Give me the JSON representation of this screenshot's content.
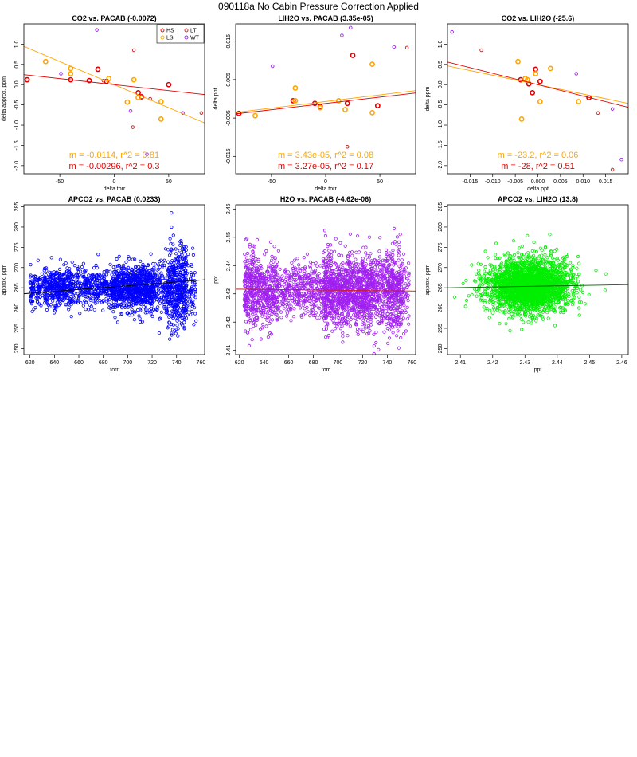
{
  "page": {
    "title": "090118a   No Cabin Pressure Correction Applied"
  },
  "colors": {
    "HS": "#e00000",
    "LS": "#ffa500",
    "LT": "#c81e1e",
    "WT": "#a020f0",
    "blue": "#0000ff",
    "purple": "#a020f0",
    "green": "#00ee00"
  },
  "chart_data": [
    {
      "type": "scatter",
      "title": "CO2 vs. PACAB (-0.0072)",
      "xlabel": "delta torr",
      "ylabel": "delta approx. ppm",
      "xlim": [
        -83,
        83
      ],
      "ylim": [
        -2.2,
        1.5
      ],
      "xticks": [
        -50,
        0,
        50
      ],
      "xtick_labels": [
        "-50",
        "0",
        "50"
      ],
      "yticks": [
        -2,
        -1.5,
        -1,
        -0.5,
        0,
        0.5,
        1
      ],
      "ytick_labels": [
        "-2.0",
        "-1.5",
        "-1.0",
        "-0.5",
        "0.0",
        "0.5",
        "1.0"
      ],
      "legend": {
        "placement": "top-right",
        "entries": [
          {
            "label": "HS",
            "color": "#e00000"
          },
          {
            "label": "LT",
            "color": "#c81e1e"
          },
          {
            "label": "LS",
            "color": "#ffa500"
          },
          {
            "label": "WT",
            "color": "#a020f0"
          }
        ]
      },
      "series": [
        {
          "name": "HS",
          "color": "#e00000",
          "thick": true,
          "points": [
            [
              -80,
              0.12
            ],
            [
              -40,
              0.12
            ],
            [
              -23,
              0.1
            ],
            [
              -15,
              0.38
            ],
            [
              -7,
              0.08
            ],
            [
              22,
              -0.2
            ],
            [
              25,
              -0.3
            ],
            [
              50,
              0.0
            ]
          ]
        },
        {
          "name": "LS",
          "color": "#ffa500",
          "thick": true,
          "points": [
            [
              -63,
              0.57
            ],
            [
              -40,
              0.4
            ],
            [
              -40,
              0.27
            ],
            [
              -5,
              0.15
            ],
            [
              12,
              -0.43
            ],
            [
              18,
              0.12
            ],
            [
              22,
              -0.32
            ],
            [
              43,
              -0.42
            ],
            [
              43,
              -0.85
            ]
          ]
        },
        {
          "name": "LT",
          "color": "#c81e1e",
          "thick": false,
          "points": [
            [
              -10,
              0.1
            ],
            [
              18,
              0.85
            ],
            [
              17,
              -1.05
            ],
            [
              33,
              -0.35
            ],
            [
              80,
              -0.7
            ]
          ]
        },
        {
          "name": "WT",
          "color": "#a020f0",
          "thick": false,
          "points": [
            [
              -49,
              0.27
            ],
            [
              -16,
              1.35
            ],
            [
              15,
              -0.65
            ],
            [
              30,
              -1.72
            ],
            [
              63,
              -0.7
            ]
          ]
        }
      ],
      "fit_lines": [
        {
          "color": "#ffa500",
          "slope": -0.0114,
          "intercept": 0.0
        },
        {
          "color": "#e00000",
          "slope": -0.00296,
          "intercept": 0.0
        }
      ],
      "annotations": [
        {
          "text": "m = -0.0114, r^2 = 0.81",
          "color": "#ffa500"
        },
        {
          "text": "m = -0.00296, r^2 = 0.3",
          "color": "#e00000"
        }
      ]
    },
    {
      "type": "scatter",
      "title": "LIH2O vs. PACAB (3.35e-05)",
      "xlabel": "delta torr",
      "ylabel": "delta ppt",
      "xlim": [
        -83,
        83
      ],
      "ylim": [
        -0.0195,
        0.0195
      ],
      "xticks": [
        -50,
        0,
        50
      ],
      "xtick_labels": [
        "-50",
        "0",
        "50"
      ],
      "yticks": [
        -0.015,
        -0.005,
        0.005,
        0.015
      ],
      "ytick_labels": [
        "-0.015",
        "-0.005",
        "0.005",
        "0.015"
      ],
      "series": [
        {
          "name": "HS",
          "color": "#e00000",
          "thick": true,
          "points": [
            [
              -80,
              -0.0038
            ],
            [
              -30,
              -0.0005
            ],
            [
              -10,
              -0.0012
            ],
            [
              -5,
              -0.002
            ],
            [
              20,
              -0.0012
            ],
            [
              25,
              0.0113
            ],
            [
              48,
              -0.0018
            ]
          ]
        },
        {
          "name": "LS",
          "color": "#ffa500",
          "thick": true,
          "points": [
            [
              -65,
              -0.0044
            ],
            [
              -28,
              0.0028
            ],
            [
              -28,
              -0.0005
            ],
            [
              -5,
              -0.0023
            ],
            [
              12,
              -0.0005
            ],
            [
              18,
              -0.0028
            ],
            [
              43,
              -0.0036
            ],
            [
              43,
              0.009
            ]
          ]
        },
        {
          "name": "LT",
          "color": "#c81e1e",
          "thick": false,
          "points": [
            [
              75,
              0.0133
            ],
            [
              20,
              -0.0125
            ]
          ]
        },
        {
          "name": "WT",
          "color": "#a020f0",
          "thick": false,
          "points": [
            [
              -49,
              0.0085
            ],
            [
              15,
              0.0165
            ],
            [
              23,
              0.0185
            ],
            [
              63,
              0.0135
            ]
          ]
        }
      ],
      "fit_lines": [
        {
          "color": "#ffa500",
          "slope": 3.43e-05,
          "intercept": -0.0007
        },
        {
          "color": "#e00000",
          "slope": 3.27e-05,
          "intercept": -0.0012
        }
      ],
      "annotations": [
        {
          "text": "m = 3.43e-05, r^2 = 0.08",
          "color": "#ffa500"
        },
        {
          "text": "m = 3.27e-05, r^2 = 0.17",
          "color": "#e00000"
        }
      ]
    },
    {
      "type": "scatter",
      "title": "CO2 vs. LIH2O (-25.6)",
      "xlabel": "delta ppt",
      "ylabel": "delta ppm",
      "xlim": [
        -0.02,
        0.02
      ],
      "ylim": [
        -2.2,
        1.5
      ],
      "xticks": [
        -0.015,
        -0.01,
        -0.005,
        0,
        0.005,
        0.01,
        0.015
      ],
      "xtick_labels": [
        "-0.015",
        "-0.010",
        "-0.005",
        "0.000",
        "0.005",
        "0.010",
        "0.015"
      ],
      "yticks": [
        -2,
        -1.5,
        -1,
        -0.5,
        0,
        0.5,
        1
      ],
      "ytick_labels": [
        "-2.0",
        "-1.5",
        "-1.0",
        "-0.5",
        "0.0",
        "0.5",
        "1.0"
      ],
      "series": [
        {
          "name": "HS",
          "color": "#e00000",
          "thick": true,
          "points": [
            [
              -0.0038,
              0.12
            ],
            [
              -0.002,
              0.02
            ],
            [
              -0.0012,
              -0.2
            ],
            [
              -0.0005,
              0.38
            ],
            [
              0.0005,
              0.08
            ],
            [
              0.0113,
              -0.32
            ]
          ]
        },
        {
          "name": "LS",
          "color": "#ffa500",
          "thick": true,
          "points": [
            [
              -0.0044,
              0.57
            ],
            [
              -0.0036,
              -0.85
            ],
            [
              -0.0028,
              0.15
            ],
            [
              -0.0023,
              0.12
            ],
            [
              -0.0005,
              0.27
            ],
            [
              0.0005,
              -0.42
            ],
            [
              0.0028,
              0.4
            ],
            [
              0.009,
              -0.42
            ]
          ]
        },
        {
          "name": "LT",
          "color": "#c81e1e",
          "thick": false,
          "points": [
            [
              -0.0125,
              0.85
            ],
            [
              0.0133,
              -0.7
            ],
            [
              0.0165,
              -2.1
            ]
          ]
        },
        {
          "name": "WT",
          "color": "#a020f0",
          "thick": false,
          "points": [
            [
              -0.019,
              1.3
            ],
            [
              0.0085,
              0.27
            ],
            [
              0.0165,
              -0.6
            ],
            [
              0.0185,
              -1.85
            ]
          ]
        }
      ],
      "fit_lines": [
        {
          "color": "#ffa500",
          "slope": -23.2,
          "intercept": 0.0
        },
        {
          "color": "#e00000",
          "slope": -28,
          "intercept": 0.0
        }
      ],
      "annotations": [
        {
          "text": "m = -23.2, r^2 = 0.06",
          "color": "#ffa500"
        },
        {
          "text": "m = -28, r^2 = 0.51",
          "color": "#e00000"
        }
      ]
    },
    {
      "type": "scatter",
      "title": "APCO2 vs. PACAB (0.0233)",
      "xlabel": "torr",
      "ylabel": "approx. ppm",
      "xlim": [
        615,
        763
      ],
      "ylim": [
        248.5,
        285.5
      ],
      "xticks": [
        620,
        640,
        660,
        680,
        700,
        720,
        740,
        760
      ],
      "xtick_labels": [
        "620",
        "640",
        "660",
        "680",
        "700",
        "720",
        "740",
        "760"
      ],
      "yticks": [
        250,
        255,
        260,
        265,
        270,
        275,
        280,
        285
      ],
      "ytick_labels": [
        "250",
        "255",
        "260",
        "265",
        "270",
        "275",
        "280",
        "285"
      ],
      "cloud": {
        "color": "#0000ff",
        "seed": 11,
        "count": 2300,
        "center": 265,
        "x_regions": [
          [
            620,
            632,
            2.0,
            1
          ],
          [
            632,
            656,
            2.4,
            2
          ],
          [
            656,
            664,
            3.0,
            1
          ],
          [
            664,
            688,
            2.2,
            1.5
          ],
          [
            688,
            722,
            2.8,
            3
          ],
          [
            722,
            733,
            3.5,
            1.5
          ],
          [
            733,
            748,
            5.5,
            3.5
          ],
          [
            748,
            756,
            4.0,
            1
          ]
        ]
      },
      "fit_lines": [
        {
          "color": "#000000",
          "slope": 0.0233,
          "intercept": 249.2
        }
      ]
    },
    {
      "type": "scatter",
      "title": "H2O vs. PACAB (-4.62e-06)",
      "xlabel": "torr",
      "ylabel": "ppt",
      "xlim": [
        617,
        763
      ],
      "ylim": [
        2.4085,
        2.4615
      ],
      "xticks": [
        620,
        640,
        660,
        680,
        700,
        720,
        740,
        760
      ],
      "xtick_labels": [
        "620",
        "640",
        "660",
        "680",
        "700",
        "720",
        "740",
        "760"
      ],
      "yticks": [
        2.41,
        2.42,
        2.43,
        2.44,
        2.45,
        2.46
      ],
      "ytick_labels": [
        "2.41",
        "2.42",
        "2.43",
        "2.44",
        "2.45",
        "2.46"
      ],
      "cloud": {
        "color": "#a020f0",
        "seed": 23,
        "count": 2600,
        "center": 2.431,
        "x_regions": [
          [
            624,
            634,
            0.007,
            2.5
          ],
          [
            634,
            652,
            0.006,
            2
          ],
          [
            652,
            670,
            0.0045,
            1
          ],
          [
            670,
            688,
            0.005,
            1
          ],
          [
            688,
            728,
            0.006,
            3
          ],
          [
            728,
            740,
            0.007,
            2
          ],
          [
            740,
            752,
            0.008,
            3
          ],
          [
            752,
            758,
            0.006,
            1
          ]
        ]
      },
      "fit_lines": [
        {
          "color": "#c81e1e",
          "slope": -4.62e-06,
          "intercept": 2.4345
        }
      ]
    },
    {
      "type": "scatter",
      "title": "APCO2 vs. LIH2O (13.8)",
      "xlabel": "ppt",
      "ylabel": "approx. ppm",
      "xlim": [
        2.406,
        2.462
      ],
      "ylim": [
        248.5,
        285.5
      ],
      "xticks": [
        2.41,
        2.42,
        2.43,
        2.44,
        2.45,
        2.46
      ],
      "xtick_labels": [
        "2.41",
        "2.42",
        "2.43",
        "2.44",
        "2.45",
        "2.46"
      ],
      "yticks": [
        250,
        255,
        260,
        265,
        270,
        275,
        280,
        285
      ],
      "ytick_labels": [
        "250",
        "255",
        "260",
        "265",
        "270",
        "275",
        "280",
        "285"
      ],
      "blob": {
        "color": "#00ee00",
        "seed": 37,
        "count": 2600,
        "cx": 2.431,
        "sx": 0.0062,
        "cy": 265.5,
        "sy": 3.2
      },
      "fit_lines": [
        {
          "color": "#006400",
          "slope": 13.8,
          "intercept": 231.8
        }
      ]
    }
  ]
}
